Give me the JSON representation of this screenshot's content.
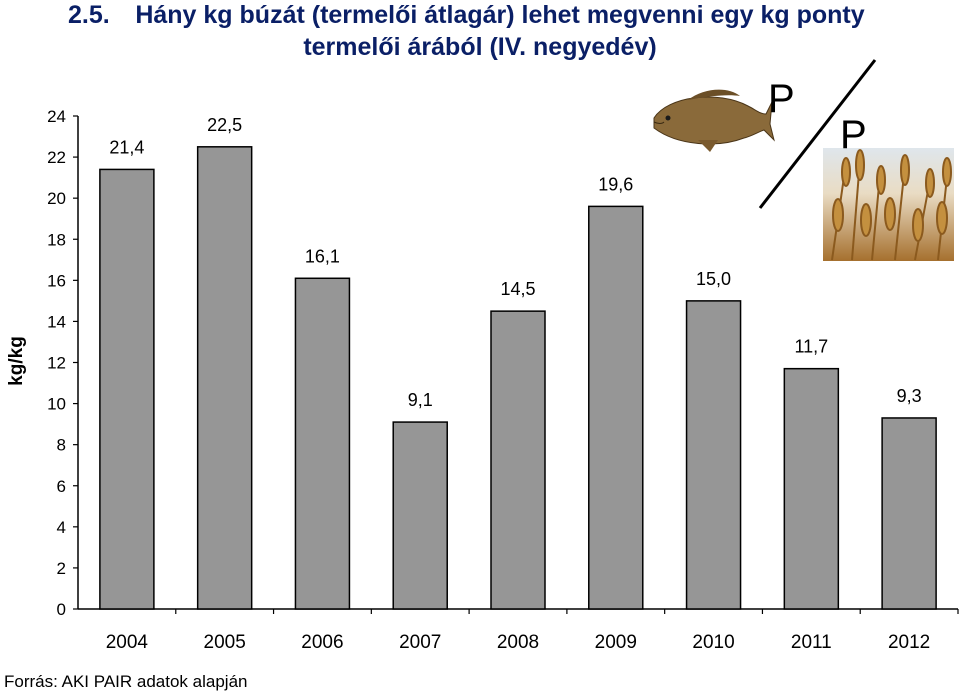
{
  "header": {
    "number": "2.5.",
    "title_line1": "Hány kg búzát (termelői átlagár) lehet megvenni egy kg ponty",
    "title_line2": "termelői árából (IV. negyedév)"
  },
  "illustration": {
    "ratio_top": "P",
    "ratio_bottom": "P",
    "fish_icon": "carp-icon",
    "wheat_icon": "wheat-photo"
  },
  "chart_data": {
    "type": "bar",
    "categories": [
      "2004",
      "2005",
      "2006",
      "2007",
      "2008",
      "2009",
      "2010",
      "2011",
      "2012"
    ],
    "values": [
      21.4,
      22.5,
      16.1,
      9.1,
      14.5,
      19.6,
      15.0,
      11.7,
      9.3
    ],
    "data_labels": [
      "21,4",
      "22,5",
      "16,1",
      "9,1",
      "14,5",
      "19,6",
      "15,0",
      "11,7",
      "9,3"
    ],
    "ylabel": "kg/kg",
    "ylim": [
      0,
      24
    ],
    "yticks": [
      0,
      2,
      4,
      6,
      8,
      10,
      12,
      14,
      16,
      18,
      20,
      22,
      24
    ],
    "bar_color": "#969696",
    "grid": false
  },
  "footer": {
    "source": "Forrás: AKI PAIR adatok alapján"
  }
}
